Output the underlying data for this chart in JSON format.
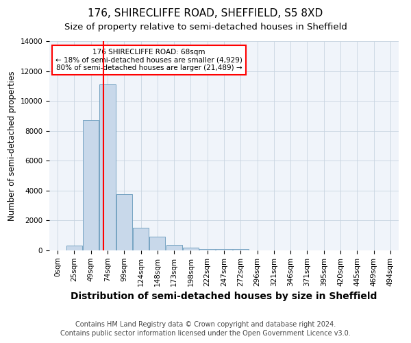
{
  "title": "176, SHIRECLIFFE ROAD, SHEFFIELD, S5 8XD",
  "subtitle": "Size of property relative to semi-detached houses in Sheffield",
  "xlabel": "Distribution of semi-detached houses by size in Sheffield",
  "ylabel": "Number of semi-detached properties",
  "footnote1": "Contains HM Land Registry data © Crown copyright and database right 2024.",
  "footnote2": "Contains public sector information licensed under the Open Government Licence v3.0.",
  "bar_labels": [
    "0sqm",
    "25sqm",
    "49sqm",
    "74sqm",
    "99sqm",
    "124sqm",
    "148sqm",
    "173sqm",
    "198sqm",
    "222sqm",
    "247sqm",
    "272sqm",
    "296sqm",
    "321sqm",
    "346sqm",
    "371sqm",
    "395sqm",
    "420sqm",
    "445sqm",
    "469sqm",
    "494sqm"
  ],
  "bar_values": [
    0,
    300,
    8700,
    11100,
    3750,
    1530,
    900,
    380,
    200,
    110,
    100,
    110,
    0,
    0,
    0,
    0,
    0,
    0,
    0,
    0,
    0
  ],
  "bar_color": "#c8d8ea",
  "bar_edge_color": "#6699bb",
  "vline_x": 2.76,
  "vline_color": "red",
  "ylim": [
    0,
    14000
  ],
  "yticks": [
    0,
    2000,
    4000,
    6000,
    8000,
    10000,
    12000,
    14000
  ],
  "annotation_text": "176 SHIRECLIFFE ROAD: 68sqm\n← 18% of semi-detached houses are smaller (4,929)\n80% of semi-detached houses are larger (21,489) →",
  "annotation_box_color": "white",
  "annotation_box_edge": "red",
  "axes_bg": "#f0f4fa",
  "title_fontsize": 11,
  "subtitle_fontsize": 9.5,
  "xlabel_fontsize": 10,
  "ylabel_fontsize": 8.5,
  "tick_fontsize": 7.5,
  "annot_fontsize": 7.5,
  "footnote_fontsize": 7
}
